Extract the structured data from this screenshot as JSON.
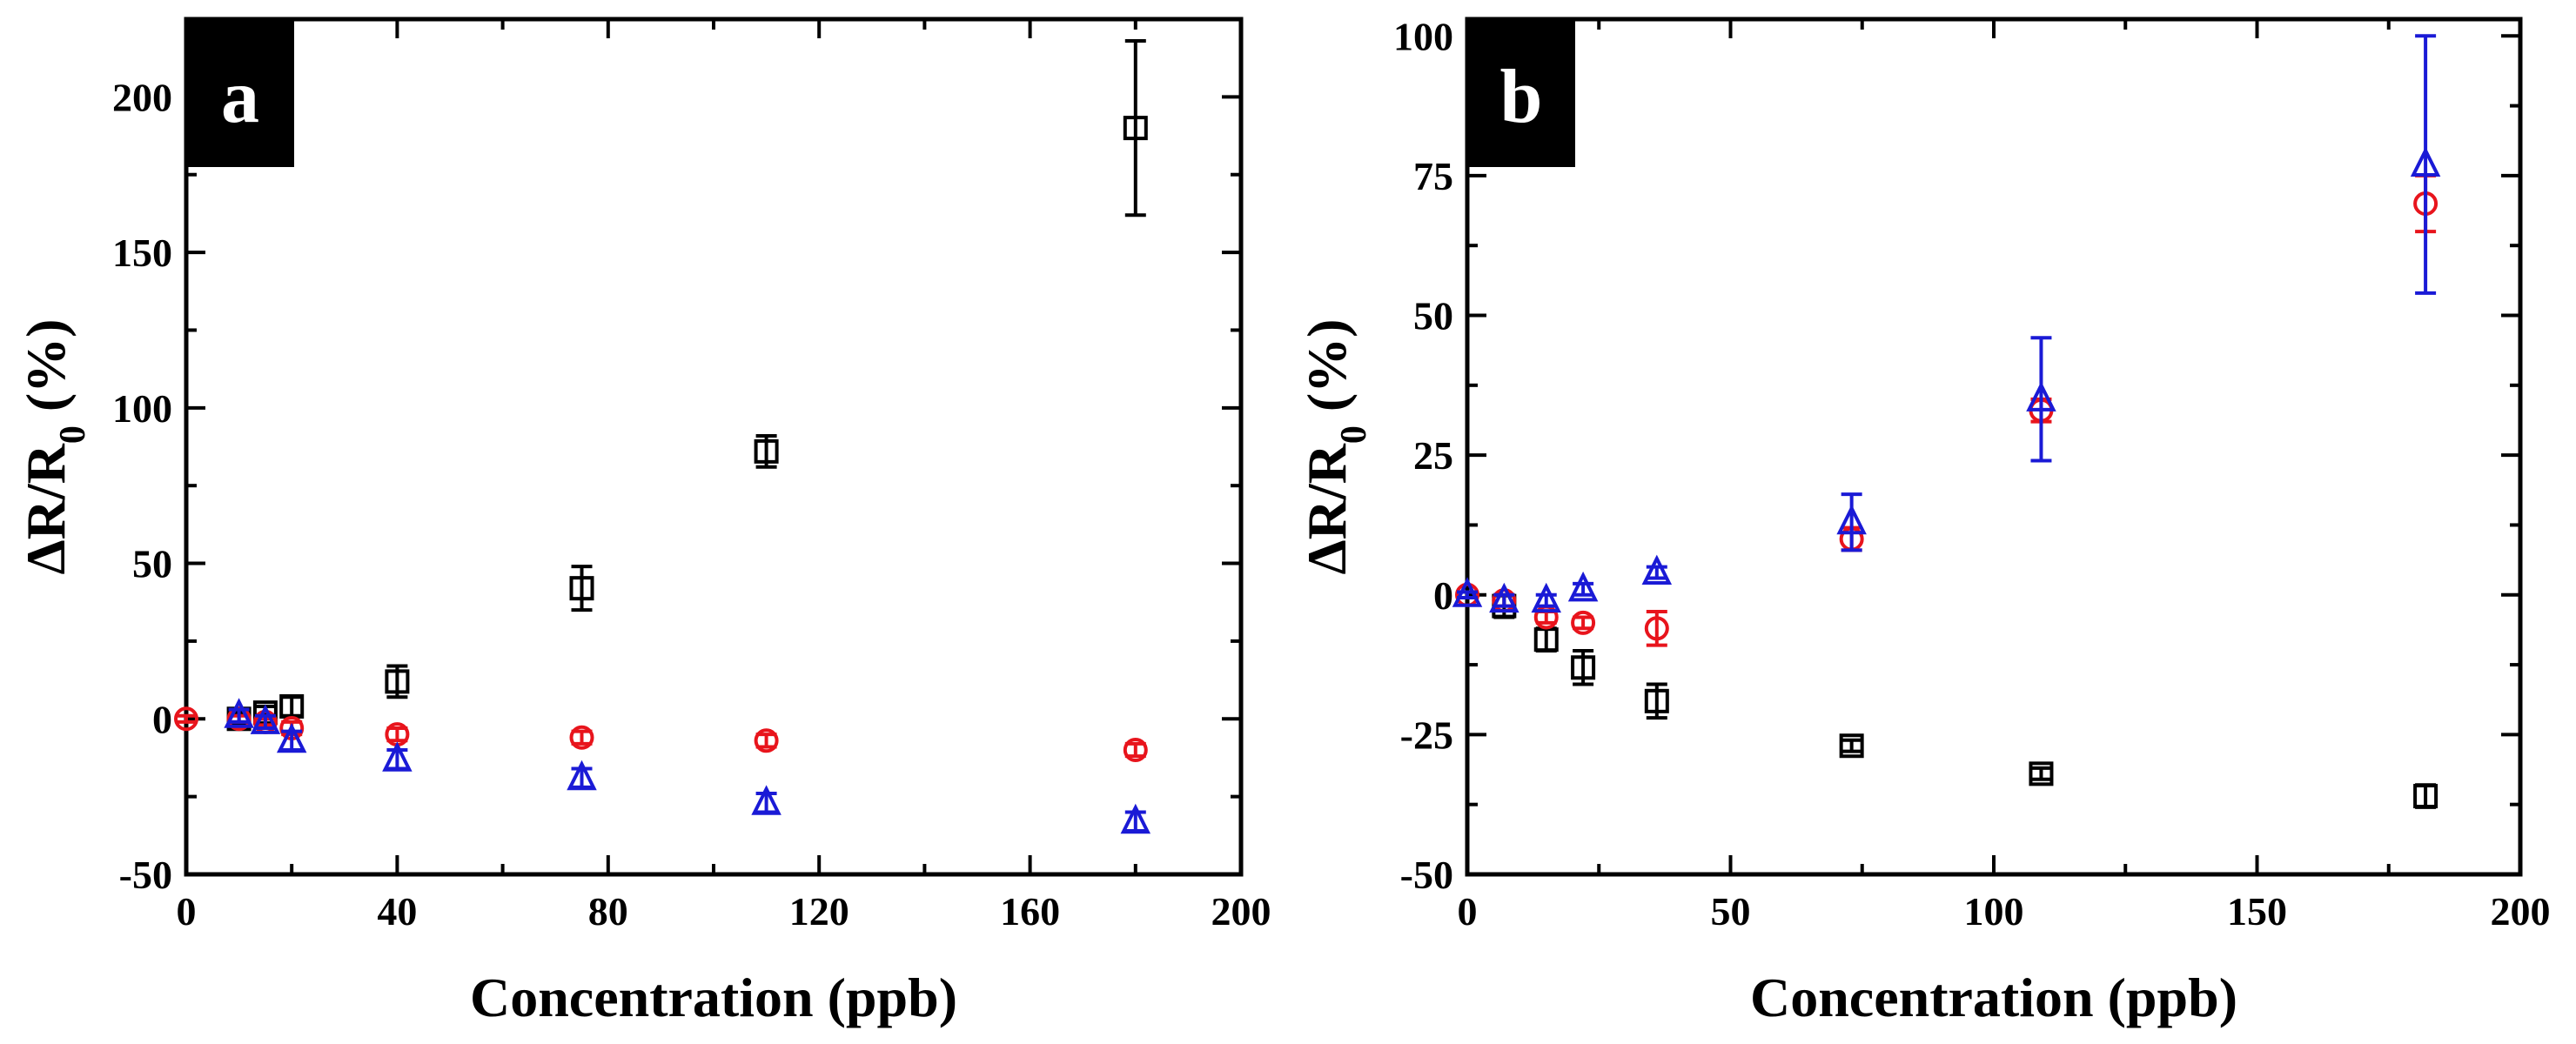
{
  "chart_data": [
    {
      "type": "scatter",
      "panel_label": "a",
      "xlabel": "Concentration (ppb)",
      "ylabel": {
        "main": "ΔR/R",
        "sub": "0",
        "suffix": " (%)"
      },
      "xlim": [
        0,
        200
      ],
      "ylim": [
        -50,
        225
      ],
      "xticks": [
        0,
        40,
        80,
        120,
        160,
        200
      ],
      "xtick_labels": [
        "0",
        "40",
        "80",
        "120",
        "160",
        "200"
      ],
      "yticks": [
        -50,
        0,
        50,
        100,
        150,
        200
      ],
      "ytick_labels": [
        "-50",
        "0",
        "50",
        "100",
        "150",
        "200"
      ],
      "series": [
        {
          "name": "square",
          "marker": "square",
          "color": "#000000",
          "x": [
            10,
            15,
            20,
            40,
            75,
            110,
            180
          ],
          "y": [
            0,
            2,
            4,
            12,
            42,
            86,
            190
          ],
          "err": [
            2,
            2,
            3,
            5,
            7,
            5,
            28
          ]
        },
        {
          "name": "circle",
          "marker": "circle",
          "color": "#e8141c",
          "x": [
            0,
            10,
            15,
            20,
            40,
            75,
            110,
            180
          ],
          "y": [
            0,
            0,
            -1,
            -3,
            -5,
            -6,
            -7,
            -10
          ],
          "err": [
            1,
            1,
            1,
            2,
            2,
            2,
            2,
            2
          ]
        },
        {
          "name": "triangle",
          "marker": "triangle",
          "color": "#1a1ad6",
          "x": [
            10,
            15,
            20,
            40,
            75,
            110,
            180
          ],
          "y": [
            1,
            -1,
            -7,
            -13,
            -19,
            -27,
            -33
          ],
          "err": [
            2,
            2,
            3,
            3,
            3,
            3,
            3
          ]
        }
      ]
    },
    {
      "type": "scatter",
      "panel_label": "b",
      "xlabel": "Concentration (ppb)",
      "ylabel": {
        "main": "ΔR/R",
        "sub": "0",
        "suffix": " (%)"
      },
      "xlim": [
        0,
        200
      ],
      "ylim": [
        -50,
        103
      ],
      "xticks": [
        0,
        50,
        100,
        150,
        200
      ],
      "xtick_labels": [
        "0",
        "50",
        "100",
        "150",
        "200"
      ],
      "yticks": [
        -50,
        -25,
        0,
        25,
        50,
        75,
        100
      ],
      "ytick_labels": [
        "-50",
        "-25",
        "0",
        "25",
        "50",
        "75",
        "100"
      ],
      "series": [
        {
          "name": "square",
          "marker": "square",
          "color": "#000000",
          "x": [
            7,
            15,
            22,
            36,
            73,
            109,
            182
          ],
          "y": [
            -2,
            -8,
            -13,
            -19,
            -27,
            -32,
            -36
          ],
          "err": [
            2,
            2,
            3,
            3,
            1,
            1,
            2
          ]
        },
        {
          "name": "circle",
          "marker": "circle",
          "color": "#e8141c",
          "x": [
            0,
            7,
            15,
            22,
            36,
            73,
            109,
            182
          ],
          "y": [
            0,
            -1,
            -4,
            -5,
            -6,
            10,
            33,
            70
          ],
          "err": [
            0.5,
            1,
            1,
            1,
            3,
            2,
            2,
            5
          ]
        },
        {
          "name": "triangle",
          "marker": "triangle",
          "color": "#1a1ad6",
          "x": [
            0,
            7,
            15,
            22,
            36,
            73,
            109,
            182
          ],
          "y": [
            0,
            -1,
            -1,
            1,
            4,
            13,
            35,
            77
          ],
          "err": [
            0.5,
            1,
            1,
            1,
            1,
            5,
            11,
            23
          ]
        }
      ]
    }
  ]
}
